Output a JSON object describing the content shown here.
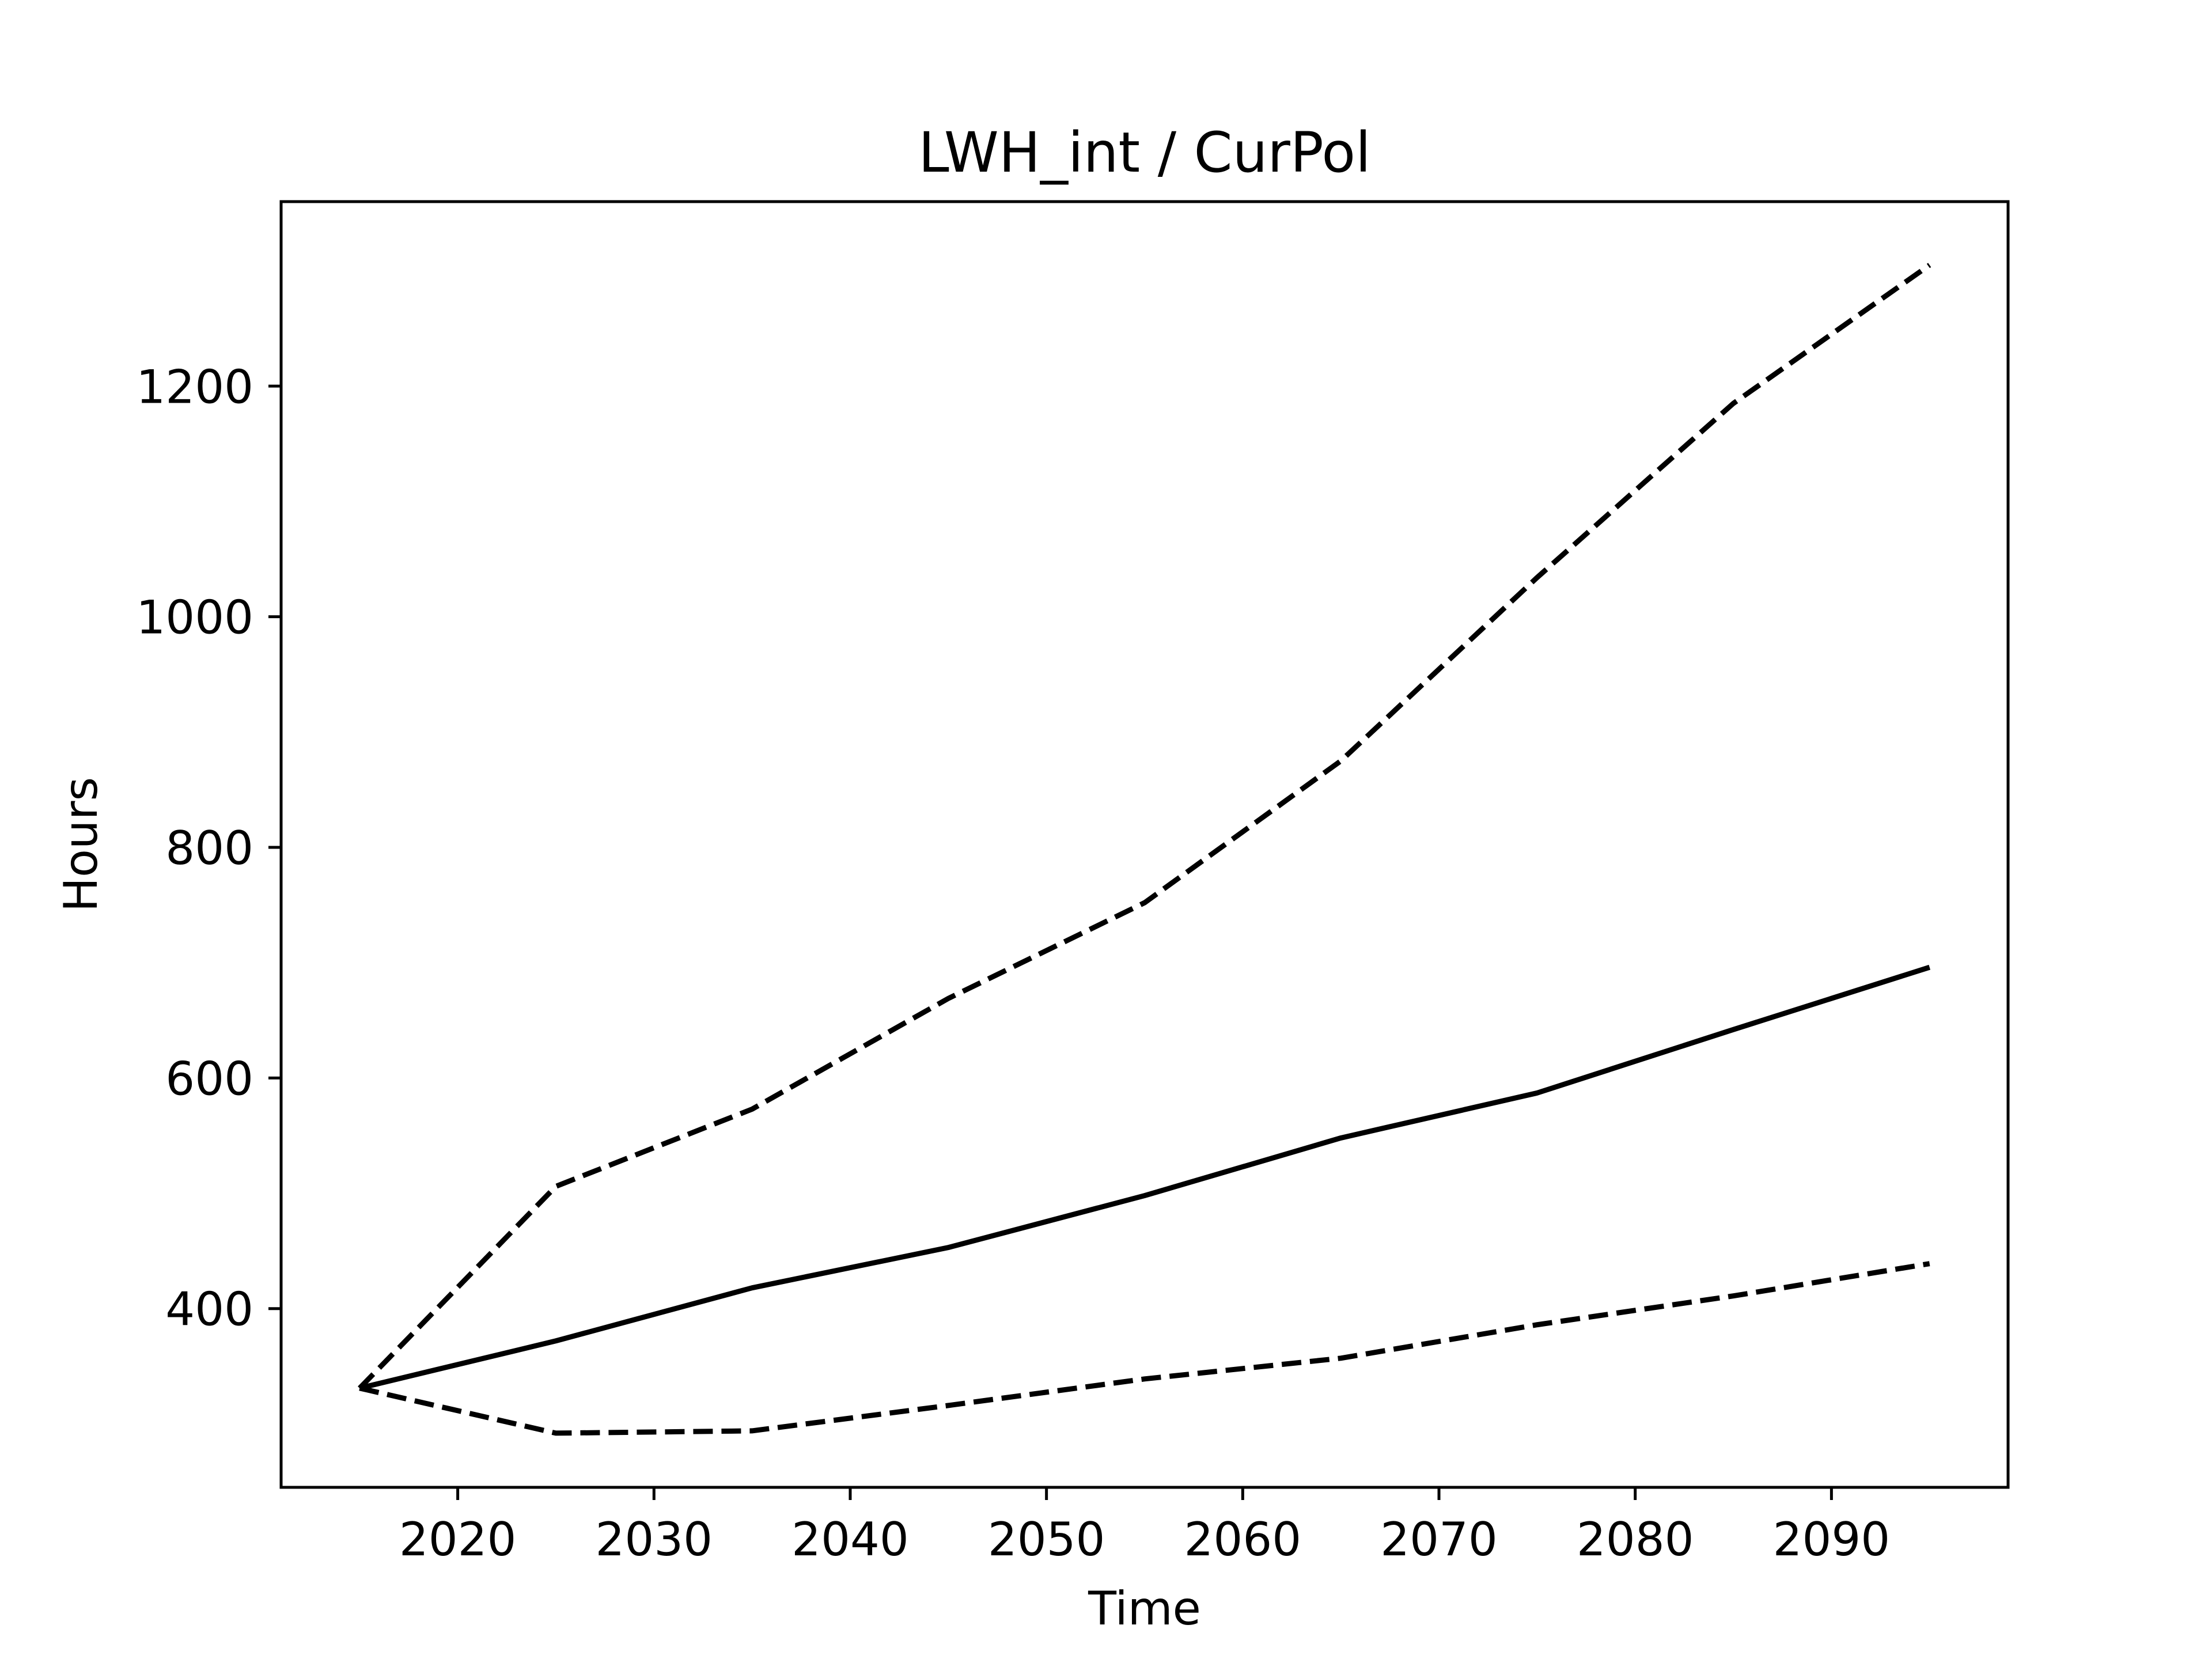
{
  "chart_data": {
    "type": "line",
    "title": "LWH_int / CurPol",
    "xlabel": "Time",
    "ylabel": "Hours",
    "xlim": [
      2011,
      2099
    ],
    "ylim": [
      245,
      1360
    ],
    "x_ticks": [
      2020,
      2030,
      2040,
      2050,
      2060,
      2070,
      2080,
      2090
    ],
    "y_ticks": [
      400,
      600,
      800,
      1000,
      1200
    ],
    "grid": false,
    "legend": "none",
    "x": [
      2015,
      2025,
      2035,
      2045,
      2055,
      2065,
      2075,
      2085,
      2095
    ],
    "series": [
      {
        "style": "solid",
        "color": "#000000",
        "values": [
          331,
          372,
          418,
          453,
          498,
          548,
          587,
          642,
          696
        ]
      },
      {
        "style": "dashed",
        "color": "#000000",
        "values": [
          331,
          506,
          573,
          669,
          752,
          875,
          1034,
          1185,
          1305
        ]
      },
      {
        "style": "dashed",
        "color": "#000000",
        "values": [
          331,
          292,
          294,
          316,
          339,
          357,
          386,
          411,
          439
        ]
      }
    ]
  }
}
